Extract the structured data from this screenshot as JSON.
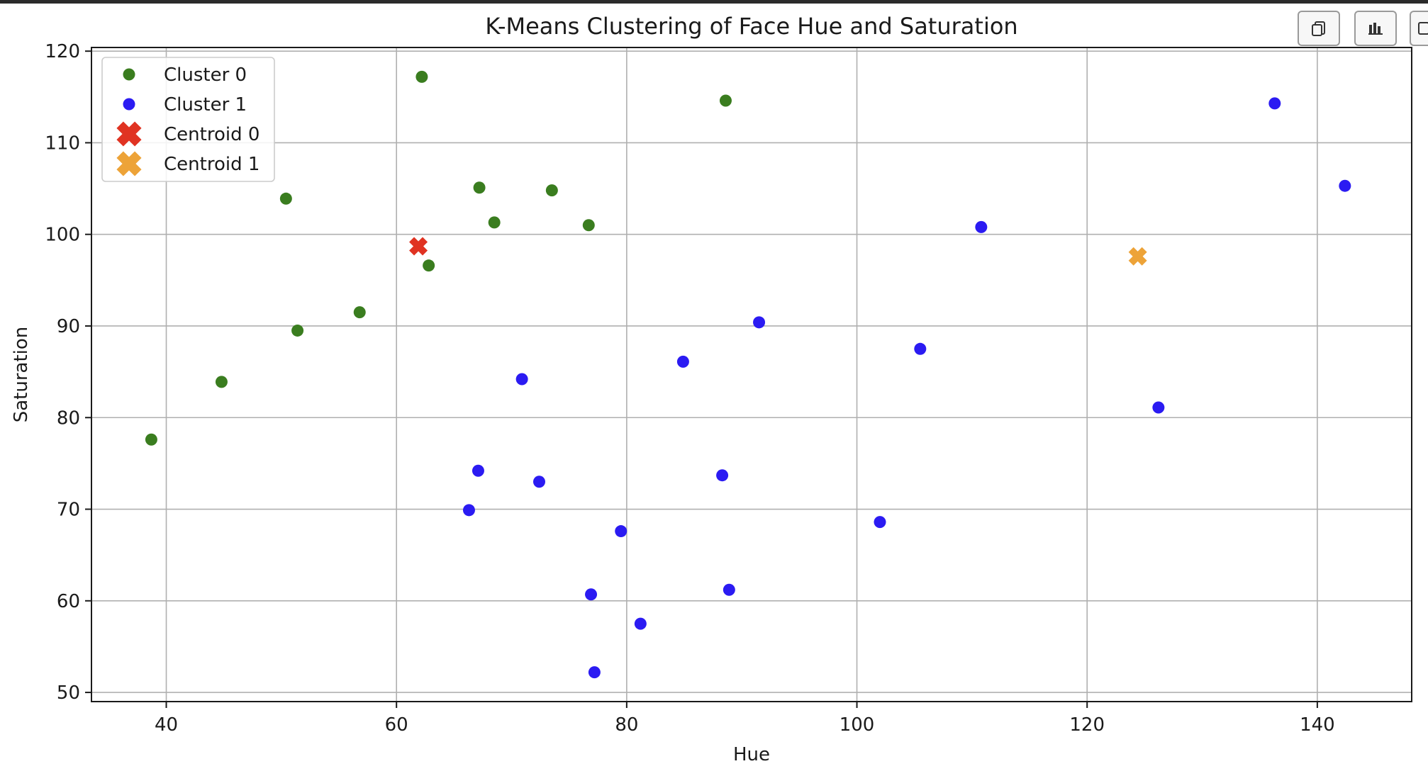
{
  "toolbar": {
    "buttons": [
      {
        "icon": "copy-icon"
      },
      {
        "icon": "bar-chart-icon"
      },
      {
        "icon": "more-icon"
      }
    ]
  },
  "chart_data": {
    "type": "scatter",
    "title": "K-Means Clustering of Face Hue and Saturation",
    "xlabel": "Hue",
    "ylabel": "Saturation",
    "xlim": [
      33.5,
      148.2
    ],
    "ylim": [
      49.0,
      120.4
    ],
    "xticks": [
      40,
      60,
      80,
      100,
      120,
      140
    ],
    "yticks": [
      50,
      60,
      70,
      80,
      90,
      100,
      110,
      120
    ],
    "grid": true,
    "legend_position": "upper-left",
    "series": [
      {
        "name": "Cluster 0",
        "marker": "circle",
        "color": "#3a7d1f",
        "points": [
          [
            38.7,
            77.6
          ],
          [
            44.8,
            83.9
          ],
          [
            50.4,
            103.9
          ],
          [
            51.4,
            89.5
          ],
          [
            56.8,
            91.5
          ],
          [
            62.2,
            117.2
          ],
          [
            62.8,
            96.6
          ],
          [
            67.2,
            105.1
          ],
          [
            68.5,
            101.3
          ],
          [
            73.5,
            104.8
          ],
          [
            76.7,
            101.0
          ],
          [
            88.6,
            114.6
          ]
        ]
      },
      {
        "name": "Cluster 1",
        "marker": "circle",
        "color": "#2b1bf2",
        "points": [
          [
            66.3,
            69.9
          ],
          [
            67.1,
            74.2
          ],
          [
            70.9,
            84.2
          ],
          [
            72.4,
            73.0
          ],
          [
            76.9,
            60.7
          ],
          [
            77.2,
            52.2
          ],
          [
            79.5,
            67.6
          ],
          [
            81.2,
            57.5
          ],
          [
            84.9,
            86.1
          ],
          [
            88.3,
            73.7
          ],
          [
            88.9,
            61.2
          ],
          [
            91.5,
            90.4
          ],
          [
            102.0,
            68.6
          ],
          [
            105.5,
            87.5
          ],
          [
            110.8,
            100.8
          ],
          [
            126.2,
            81.1
          ],
          [
            136.3,
            114.3
          ],
          [
            142.4,
            105.3
          ]
        ]
      },
      {
        "name": "Centroid 0",
        "marker": "x",
        "color": "#e03322",
        "points": [
          [
            61.9,
            98.7
          ]
        ]
      },
      {
        "name": "Centroid 1",
        "marker": "x",
        "color": "#eda338",
        "points": [
          [
            124.4,
            97.6
          ]
        ]
      }
    ]
  }
}
